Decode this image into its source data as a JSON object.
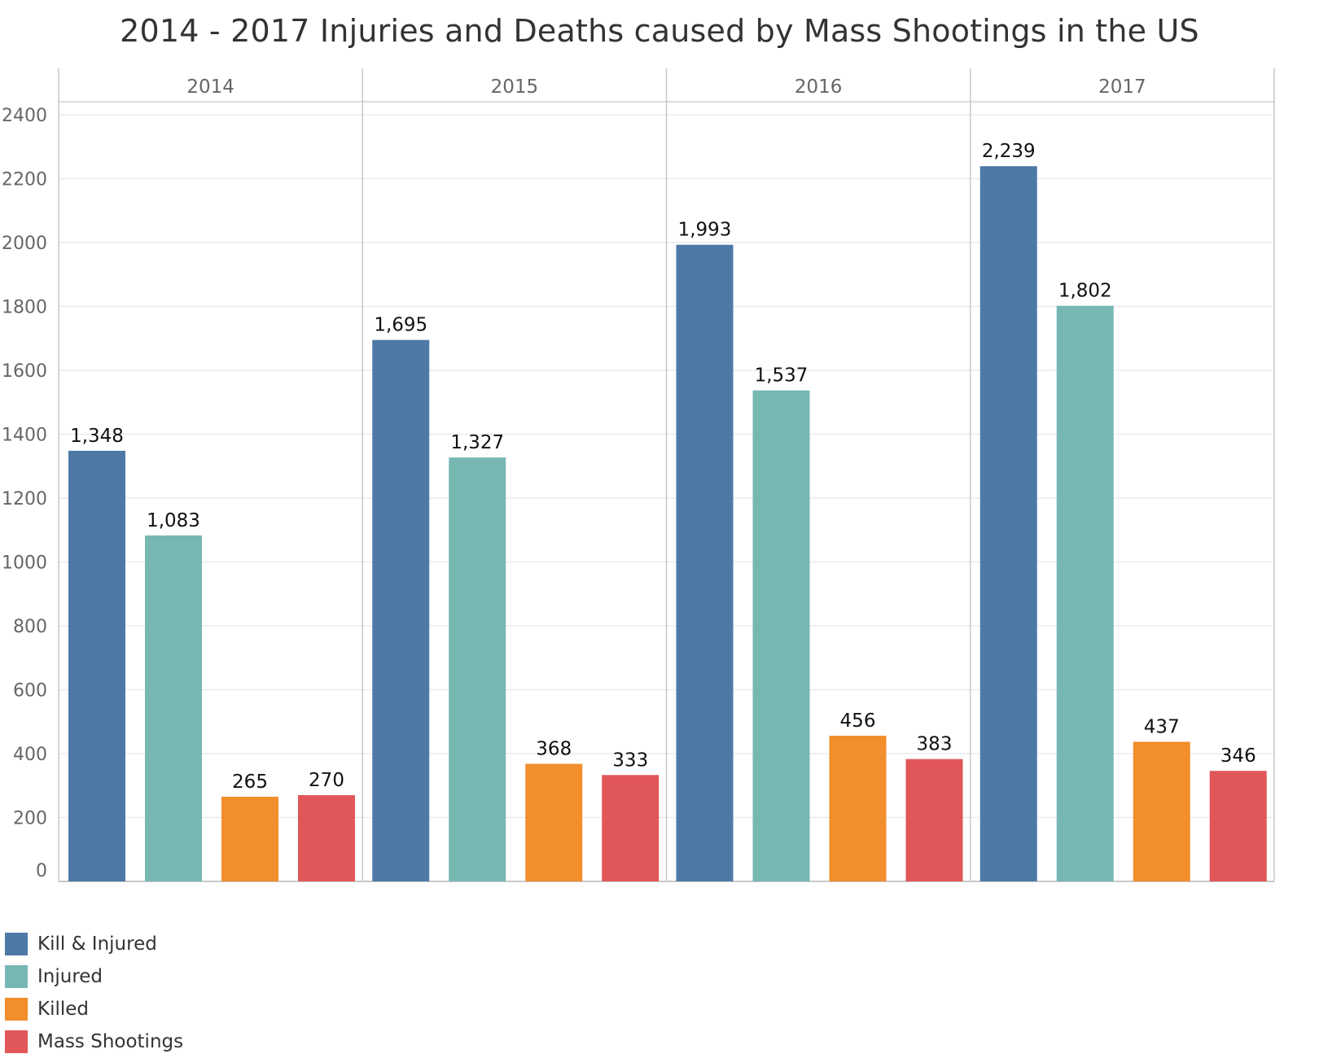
{
  "chart_data": {
    "type": "bar",
    "title": "2014 - 2017 Injuries and Deaths caused by Mass Shootings in the US",
    "panels": [
      "2014",
      "2015",
      "2016",
      "2017"
    ],
    "series": [
      {
        "name": "Kill & Injured",
        "color": "#4e79a7",
        "values": [
          1348,
          1695,
          1993,
          2239
        ],
        "labels": [
          "1,348",
          "1,695",
          "1,993",
          "2,239"
        ]
      },
      {
        "name": "Injured",
        "color": "#76b7b2",
        "values": [
          1083,
          1327,
          1537,
          1802
        ],
        "labels": [
          "1,083",
          "1,327",
          "1,537",
          "1,802"
        ]
      },
      {
        "name": "Killed",
        "color": "#f28e2b",
        "values": [
          265,
          368,
          456,
          437
        ],
        "labels": [
          "265",
          "368",
          "456",
          "437"
        ]
      },
      {
        "name": "Mass Shootings",
        "color": "#e15759",
        "values": [
          270,
          333,
          383,
          346
        ],
        "labels": [
          "270",
          "333",
          "383",
          "346"
        ]
      }
    ],
    "yticks": [
      "0",
      "200",
      "400",
      "600",
      "800",
      "1000",
      "1200",
      "1400",
      "1600",
      "1800",
      "2000",
      "2200",
      "2400"
    ],
    "ylim": [
      0,
      2400
    ],
    "grid": true,
    "legend_position": "bottom-left"
  }
}
